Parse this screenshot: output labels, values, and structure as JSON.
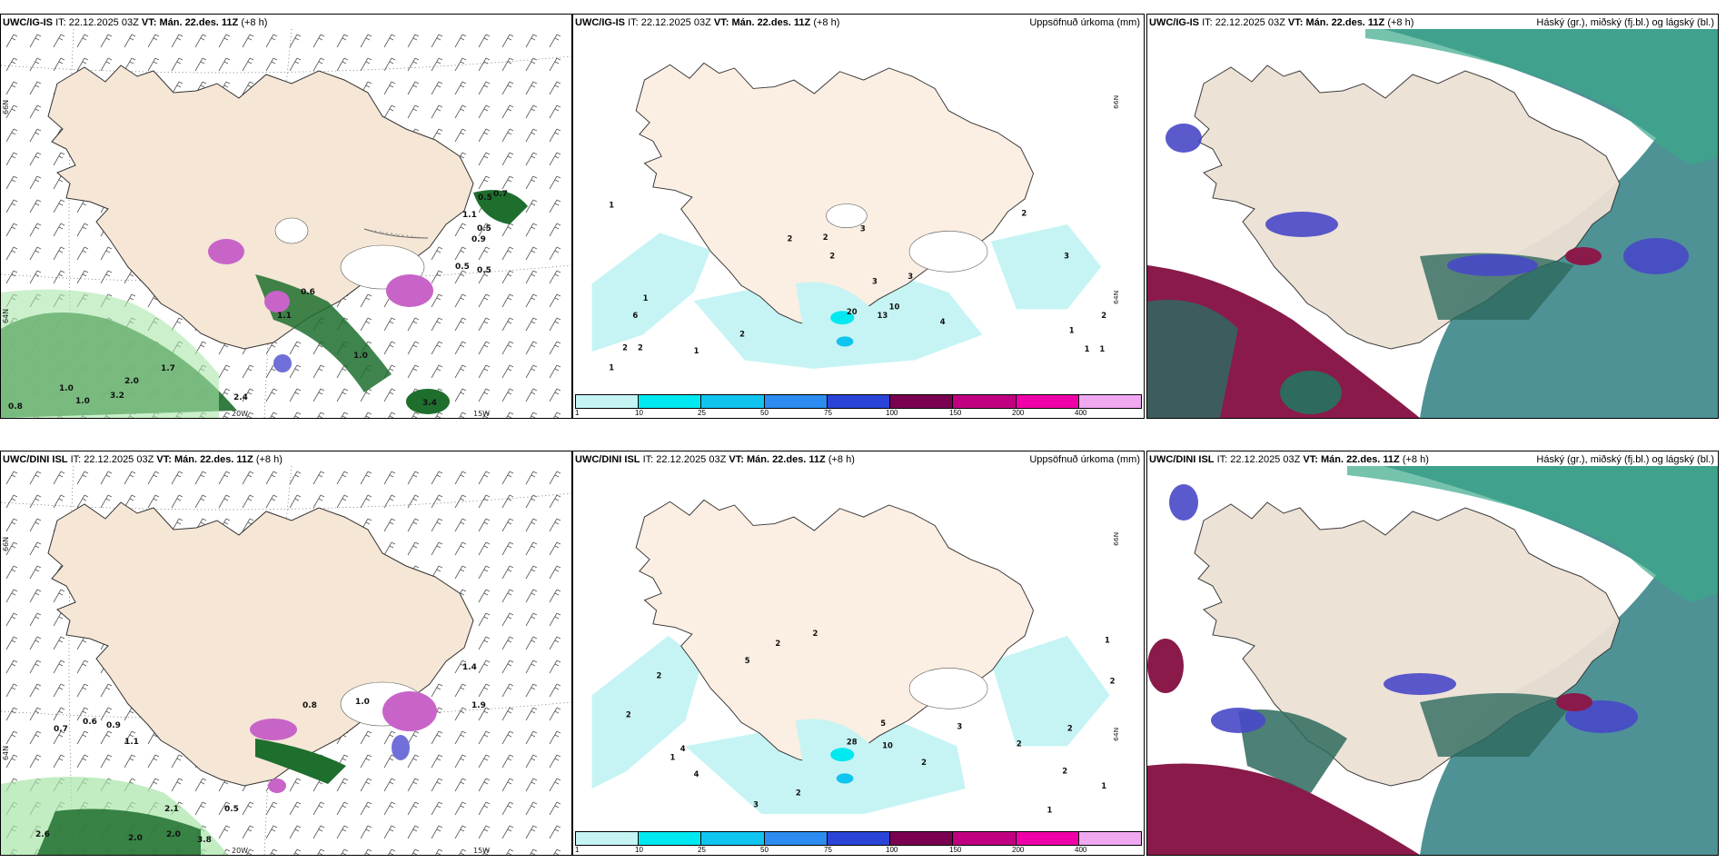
{
  "panels": [
    {
      "model": "UWC/IG-IS",
      "it_label": "IT:",
      "it": "22.12.2025 03Z",
      "vt_label": "VT:",
      "vt": "Mán. 22.des. 11Z",
      "lead": "(+8 h)",
      "title": ""
    },
    {
      "model": "UWC/IG-IS",
      "it_label": "IT:",
      "it": "22.12.2025 03Z",
      "vt_label": "VT:",
      "vt": "Mán. 22.des. 11Z",
      "lead": "(+8 h)",
      "title": "Uppsöfnuð úrkoma (mm)"
    },
    {
      "model": "UWC/IG-IS",
      "it_label": "IT:",
      "it": "22.12.2025 03Z",
      "vt_label": "VT:",
      "vt": "Mán. 22.des. 11Z",
      "lead": "(+8 h)",
      "title": "Háský (gr.), miðský (fj.bl.) og lágský (bl.)"
    },
    {
      "model": "UWC/DINI ISL",
      "it_label": "IT:",
      "it": "22.12.2025 03Z",
      "vt_label": "VT:",
      "vt": "Mán. 22.des. 11Z",
      "lead": "(+8 h)",
      "title": ""
    },
    {
      "model": "UWC/DINI ISL",
      "it_label": "IT:",
      "it": "22.12.2025 03Z",
      "vt_label": "VT:",
      "vt": "Mán. 22.des. 11Z",
      "lead": "(+8 h)",
      "title": "Uppsöfnuð úrkoma (mm)"
    },
    {
      "model": "UWC/DINI ISL",
      "it_label": "IT:",
      "it": "22.12.2025 03Z",
      "vt_label": "VT:",
      "vt": "Mán. 22.des. 11Z",
      "lead": "(+8 h)",
      "title": "Háský (gr.), miðský (fj.bl.) og lágský (bl.)"
    }
  ],
  "axis": {
    "lat1": "66N",
    "lat2": "64N",
    "lon1": "20W",
    "lon2": "15W"
  },
  "colorbar": {
    "ticks": [
      "1",
      "10",
      "25",
      "50",
      "75",
      "100",
      "150",
      "200",
      "400"
    ],
    "colors": [
      "#c6f4f4",
      "#00e8f0",
      "#10c4f0",
      "#2c8cf0",
      "#2a44d8",
      "#7a0050",
      "#c00080",
      "#f000a8",
      "#f0a8f0"
    ]
  },
  "gust_labels_top": [
    "0.5",
    "0.7",
    "1.1",
    "0.5",
    "0.9",
    "0.5",
    "0.5",
    "0.6",
    "1.1",
    "1.0",
    "2.0",
    "3.2",
    "1.7",
    "1.0",
    "0.8",
    "1.0",
    "2.4",
    "3.4"
  ],
  "gust_labels_bottom": [
    "0.7",
    "0.6",
    "0.9",
    "1.1",
    "0.8",
    "1.0",
    "2.1",
    "0.5",
    "2.0",
    "2.0",
    "3.8",
    "2.6",
    "1.4",
    "1.9"
  ],
  "precip_labels_top": [
    "1",
    "1",
    "2",
    "2",
    "2",
    "3",
    "3",
    "2",
    "20",
    "13",
    "10",
    "3",
    "4",
    "6",
    "2",
    "2",
    "1",
    "1",
    "1",
    "2",
    "3",
    "2",
    "1",
    "1"
  ],
  "precip_labels_bottom": [
    "2",
    "2",
    "1",
    "5",
    "4",
    "2",
    "2",
    "3",
    "2",
    "28",
    "10",
    "5",
    "2",
    "4",
    "3",
    "2",
    "2",
    "1",
    "2",
    "1",
    "2",
    "1"
  ]
}
